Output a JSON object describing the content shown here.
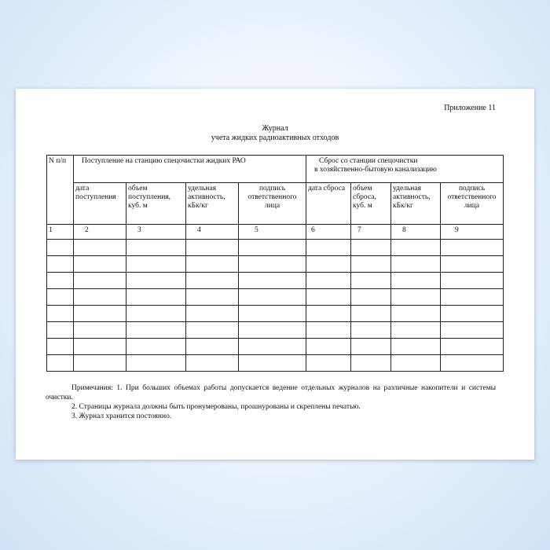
{
  "appendix": "Приложение 11",
  "title": "Журнал",
  "subtitle": "учета жидких  радиоактивных отходов",
  "table": {
    "num_header": "N п/п",
    "group1": "Поступление на станцию спецочистки жидких РАО",
    "group2_line1": "Сброс со станции спецочистки",
    "group2_line2": "в хозяйственно-бытовую канализацию",
    "columns": [
      "дата поступления",
      "объем поступления, куб. м",
      "удельная активность, кБк/кг",
      "подпись ответственного лица",
      "дата сброса",
      "объем сброса, куб. м",
      "удельная активность, кБк/кг",
      "подпись ответственного лица"
    ],
    "numbers": [
      "1",
      "2",
      "3",
      "4",
      "5",
      "6",
      "7",
      "8",
      "9"
    ]
  },
  "notes": [
    "Примечания: 1. При больших объемах работы допускается ведение отдельных журналов на различные накопители и системы очистки.",
    "2. Страницы журнала должны  быть пронумерованы, прошнурованы и скреплены печатью.",
    "3. Журнал хранится постоянно."
  ]
}
